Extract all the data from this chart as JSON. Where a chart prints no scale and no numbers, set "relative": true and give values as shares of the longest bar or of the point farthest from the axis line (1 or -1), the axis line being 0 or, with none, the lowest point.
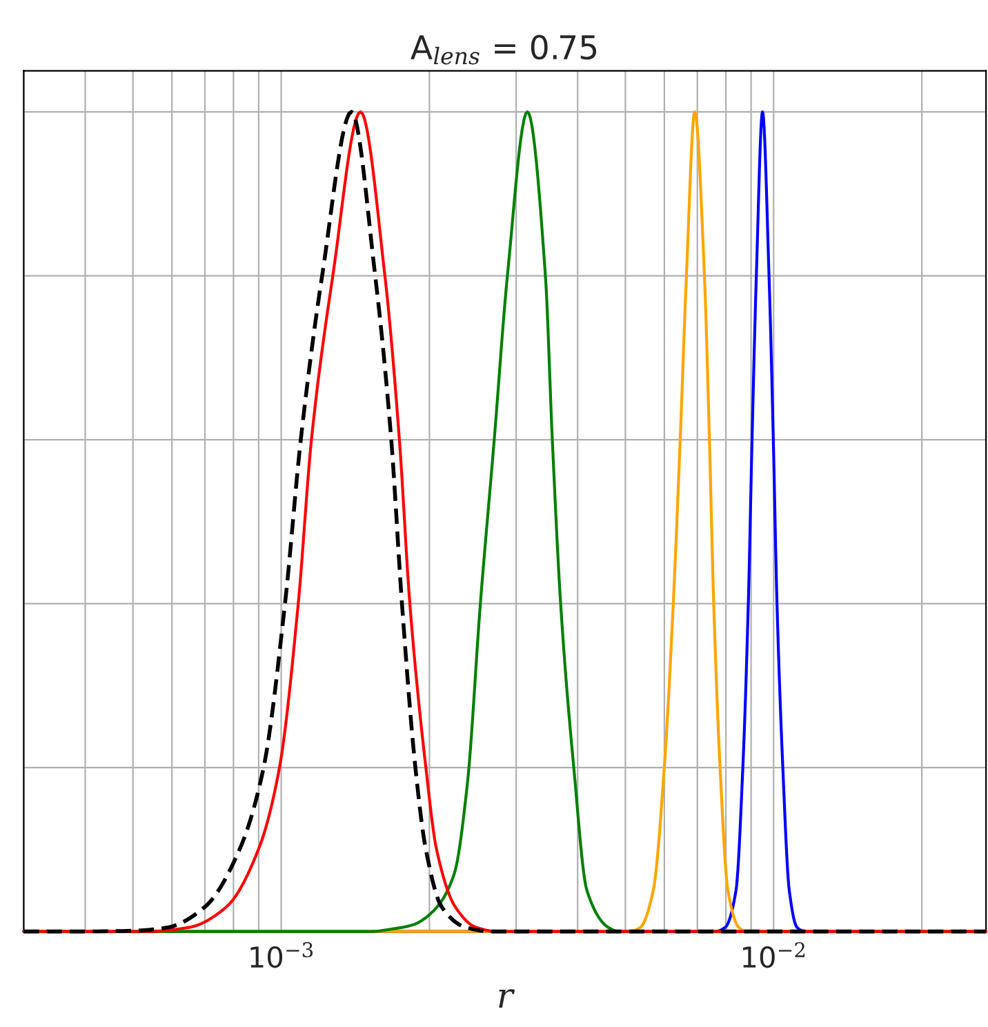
{
  "chart_data": {
    "type": "line",
    "title": "A$_{lens}$ = 0.75",
    "xlabel": "r",
    "relative": true,
    "log": "x",
    "grid": true,
    "tick_labels": "x",
    "xlim": [
      0.0003,
      0.027
    ],
    "xticks": [
      {
        "value": 0.001,
        "label": "10$^{−3}$"
      },
      {
        "value": 0.01,
        "label": "10$^{−2}$"
      }
    ],
    "series": [
      {
        "color": "#0000ff",
        "x": [
          0.0003,
          0.007596,
          0.007973,
          0.008386,
          0.00866,
          0.008884,
          0.009041,
          0.009224,
          0.009495,
          0.009788,
          0.009986,
          0.01016,
          0.01044,
          0.01076,
          0.01116,
          0.01159,
          0.027
        ],
        "values": [
          0,
          0,
          0.005,
          0.05,
          0.2,
          0.4,
          0.6,
          0.8,
          1,
          0.8,
          0.6,
          0.4,
          0.2,
          0.05,
          0.005,
          0,
          0
        ]
      },
      {
        "color": "#ffa500",
        "x": [
          0.0003,
          0.005105,
          0.005361,
          0.005695,
          0.005998,
          0.006255,
          0.006461,
          0.006652,
          0.006916,
          0.007236,
          0.007407,
          0.007557,
          0.007785,
          0.008077,
          0.008495,
          0.008775,
          0.027
        ],
        "values": [
          0,
          0,
          0.005,
          0.05,
          0.2,
          0.4,
          0.6,
          0.8,
          1,
          0.8,
          0.6,
          0.4,
          0.2,
          0.05,
          0.005,
          0,
          0
        ]
      },
      {
        "color": "#008000",
        "x": [
          0.0003,
          0.001523,
          0.001678,
          0.001849,
          0.002037,
          0.002245,
          0.002388,
          0.002538,
          0.002708,
          0.00288,
          0.003162,
          0.00344,
          0.003553,
          0.003694,
          0.003928,
          0.004177,
          0.004617,
          0.004846,
          0.027
        ],
        "values": [
          0,
          0,
          0.003,
          0.008,
          0.025,
          0.07,
          0.18,
          0.4,
          0.6,
          0.8,
          1,
          0.8,
          0.6,
          0.4,
          0.2,
          0.05,
          0.005,
          0,
          0
        ]
      },
      {
        "color": "#ff0000",
        "x": [
          0.0003,
          0.000533,
          0.00065,
          0.000774,
          0.000899,
          0.000992,
          0.001083,
          0.001152,
          0.001273,
          0.001449,
          0.001624,
          0.001738,
          0.001825,
          0.001967,
          0.002068,
          0.002257,
          0.002489,
          0.002752,
          0.027
        ],
        "values": [
          0,
          0,
          0.005,
          0.03,
          0.1,
          0.2,
          0.4,
          0.6,
          0.8,
          1,
          0.8,
          0.6,
          0.4,
          0.2,
          0.1,
          0.03,
          0.005,
          0,
          0
        ]
      },
      {
        "color": "#000000",
        "line_style": "dashed",
        "x": [
          0.0003,
          0.000392,
          0.000507,
          0.000589,
          0.0007,
          0.000823,
          0.000921,
          0.001018,
          0.001096,
          0.001211,
          0.001389,
          0.001552,
          0.001673,
          0.001759,
          0.001873,
          0.001967,
          0.002118,
          0.002371,
          0.002685,
          0.027
        ],
        "values": [
          0,
          0,
          0.001,
          0.005,
          0.03,
          0.1,
          0.2,
          0.4,
          0.6,
          0.8,
          1,
          0.8,
          0.6,
          0.4,
          0.2,
          0.1,
          0.03,
          0.005,
          0,
          0
        ]
      }
    ]
  }
}
